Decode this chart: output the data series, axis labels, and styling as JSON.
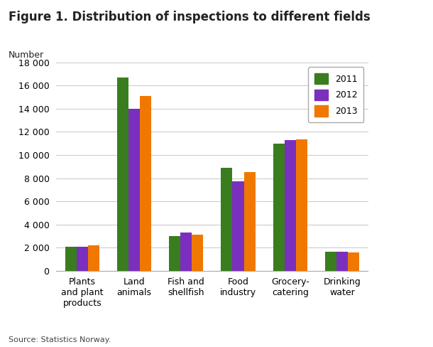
{
  "title": "Figure 1. Distribution of inspections to different fields",
  "ylabel": "Number",
  "source": "Source: Statistics Norway.",
  "categories": [
    "Plants\nand plant\nproducts",
    "Land\nanimals",
    "Fish and\nshellfish",
    "Food\nindustry",
    "Grocery-\ncatering",
    "Drinking\nwater"
  ],
  "series": [
    {
      "label": "2011",
      "color": "#3a7d1e",
      "values": [
        2050,
        16700,
        3000,
        8900,
        11000,
        1650
      ]
    },
    {
      "label": "2012",
      "color": "#7b2fbe",
      "values": [
        2050,
        14000,
        3300,
        7700,
        11300,
        1650
      ]
    },
    {
      "label": "2013",
      "color": "#f07800",
      "values": [
        2200,
        15100,
        3100,
        8500,
        11350,
        1600
      ]
    }
  ],
  "ylim": [
    0,
    18000
  ],
  "yticks": [
    0,
    2000,
    4000,
    6000,
    8000,
    10000,
    12000,
    14000,
    16000,
    18000
  ],
  "ytick_labels": [
    "0",
    "2 000",
    "4 000",
    "6 000",
    "8 000",
    "10 000",
    "12 000",
    "14 000",
    "16 000",
    "18 000"
  ],
  "background_color": "#ffffff",
  "grid_color": "#cccccc",
  "bar_width": 0.22,
  "title_fontsize": 12,
  "axis_fontsize": 9,
  "source_fontsize": 8
}
